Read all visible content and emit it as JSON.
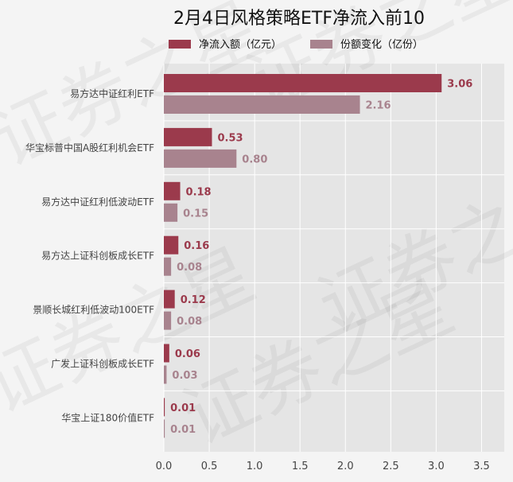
{
  "chart_data": {
    "type": "bar",
    "orientation": "horizontal",
    "title": "2月4日风格策略ETF净流入前10",
    "categories": [
      "易方达中证红利ETF",
      "华宝标普中国A股红利机会ETF",
      "易方达中证红利低波动ETF",
      "易方达上证科创板成长ETF",
      "景顺长城红利低波动100ETF",
      "广发上证科创板成长ETF",
      "华宝上证180价值ETF"
    ],
    "series": [
      {
        "name": "净流入额（亿元）",
        "color": "#9b3a4c",
        "values": [
          3.06,
          0.53,
          0.18,
          0.16,
          0.12,
          0.06,
          0.01
        ],
        "labels": [
          "3.06",
          "0.53",
          "0.18",
          "0.16",
          "0.12",
          "0.06",
          "0.01"
        ]
      },
      {
        "name": "份额变化（亿份）",
        "color": "#a8838e",
        "values": [
          2.16,
          0.8,
          0.15,
          0.08,
          0.08,
          0.03,
          0.01
        ],
        "labels": [
          "2.16",
          "0.80",
          "0.15",
          "0.08",
          "0.08",
          "0.03",
          "0.01"
        ]
      }
    ],
    "xlim": [
      0,
      3.75
    ],
    "xticks": [
      "0.0",
      "0.5",
      "1.0",
      "1.5",
      "2.0",
      "2.5",
      "3.0",
      "3.5"
    ],
    "grid": true,
    "legend": "top"
  },
  "watermark": {
    "text": "证券之星",
    "color": "#000000"
  },
  "colors": {
    "background": "#f4f4f4",
    "plot_background": "#e5e5e5",
    "grid": "#ffffff"
  }
}
